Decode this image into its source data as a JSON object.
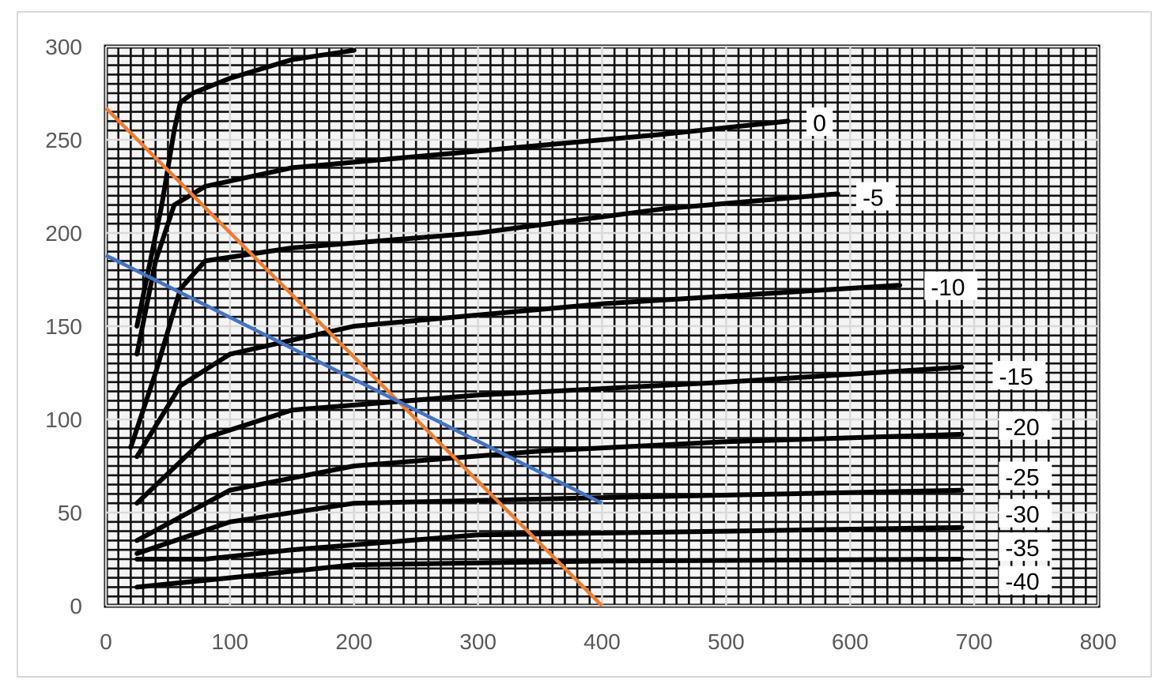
{
  "chart_data": {
    "type": "line",
    "title": "",
    "xlabel": "",
    "ylabel": "",
    "xlim": [
      0,
      800
    ],
    "ylim": [
      0,
      300
    ],
    "x_ticks": [
      "0",
      "100",
      "200",
      "300",
      "400",
      "500",
      "600",
      "700",
      "800"
    ],
    "y_ticks": [
      "0",
      "50",
      "100",
      "150",
      "200",
      "250",
      "300"
    ],
    "grid": true,
    "background": "scanned characteristic-curve graph paper (black ink on white, dense grid)",
    "overlay_series": [
      {
        "color": "#ED7D31",
        "points": [
          [
            0,
            267
          ],
          [
            400,
            0
          ]
        ]
      },
      {
        "color": "#4472C4",
        "points": [
          [
            0,
            188
          ],
          [
            400,
            55
          ]
        ]
      }
    ],
    "scanned_curves": [
      {
        "label": "0",
        "points": [
          [
            25,
            150
          ],
          [
            45,
            215
          ],
          [
            55,
            255
          ],
          [
            60,
            270
          ],
          [
            70,
            275
          ],
          [
            100,
            283
          ],
          [
            150,
            293
          ],
          [
            200,
            298
          ]
        ],
        "label_at": [
          570,
          258
        ]
      },
      {
        "label": "-5",
        "points": [
          [
            25,
            135
          ],
          [
            40,
            185
          ],
          [
            55,
            215
          ],
          [
            80,
            225
          ],
          [
            150,
            235
          ],
          [
            300,
            244
          ],
          [
            450,
            253
          ],
          [
            550,
            260
          ]
        ],
        "label_at": [
          610,
          218
        ]
      },
      {
        "label": "-10",
        "points": [
          [
            20,
            85
          ],
          [
            40,
            125
          ],
          [
            60,
            170
          ],
          [
            80,
            185
          ],
          [
            150,
            192
          ],
          [
            300,
            200
          ],
          [
            450,
            213
          ],
          [
            590,
            221
          ]
        ],
        "label_at": [
          665,
          170
        ]
      },
      {
        "label": "-15",
        "points": [
          [
            25,
            80
          ],
          [
            60,
            118
          ],
          [
            100,
            135
          ],
          [
            200,
            150
          ],
          [
            400,
            162
          ],
          [
            640,
            172
          ]
        ],
        "label_at": [
          720,
          122
        ]
      },
      {
        "label": "-20",
        "points": [
          [
            25,
            55
          ],
          [
            80,
            90
          ],
          [
            150,
            105
          ],
          [
            300,
            113
          ],
          [
            500,
            120
          ],
          [
            690,
            128
          ]
        ],
        "label_at": [
          725,
          95
        ]
      },
      {
        "label": "-25",
        "points": [
          [
            25,
            35
          ],
          [
            100,
            62
          ],
          [
            200,
            75
          ],
          [
            350,
            83
          ],
          [
            500,
            88
          ],
          [
            690,
            92
          ]
        ],
        "label_at": [
          725,
          68
        ]
      },
      {
        "label": "-30",
        "points": [
          [
            25,
            28
          ],
          [
            100,
            45
          ],
          [
            200,
            55
          ],
          [
            400,
            58
          ],
          [
            690,
            62
          ]
        ],
        "label_at": [
          725,
          48
        ]
      },
      {
        "label": "-35",
        "points": [
          [
            25,
            25
          ],
          [
            80,
            25
          ],
          [
            150,
            30
          ],
          [
            300,
            38
          ],
          [
            500,
            40
          ],
          [
            690,
            42
          ]
        ],
        "label_at": [
          725,
          30
        ]
      },
      {
        "label": "-40",
        "points": [
          [
            25,
            10
          ],
          [
            100,
            15
          ],
          [
            200,
            22
          ],
          [
            400,
            24
          ],
          [
            690,
            25
          ]
        ],
        "label_at": [
          725,
          12
        ]
      }
    ]
  }
}
